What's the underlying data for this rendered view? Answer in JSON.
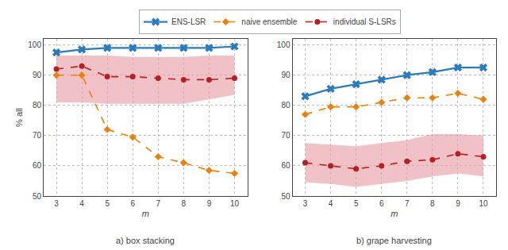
{
  "chart_data": [
    {
      "type": "line",
      "title": "a) box stacking",
      "xlabel": "m",
      "ylabel": "% all",
      "x": [
        3,
        4,
        5,
        6,
        7,
        8,
        9,
        10
      ],
      "series": [
        {
          "name": "ENS-LSR",
          "color": "#2b7bba",
          "marker": "x",
          "line_style": "solid",
          "values": [
            97.5,
            98.5,
            99.0,
            99.0,
            99.0,
            99.0,
            99.0,
            99.5
          ]
        },
        {
          "name": "naive ensemble",
          "color": "#e8820c",
          "marker": "diamond",
          "line_style": "dashed",
          "values": [
            90.0,
            90.0,
            72.0,
            69.5,
            63.0,
            61.0,
            58.5,
            57.5
          ]
        },
        {
          "name": "individual S-LSRs",
          "color": "#b52020",
          "marker": "circle",
          "line_style": "dashed",
          "values": [
            92.0,
            93.0,
            89.5,
            89.5,
            89.0,
            88.5,
            88.5,
            89.0
          ],
          "band": {
            "color": "#e8a0a8",
            "upper": [
              96.5,
              96.5,
              96.5,
              96.0,
              96.0,
              96.0,
              96.5,
              96.5
            ],
            "lower": [
              81.0,
              81.0,
              80.5,
              80.5,
              80.5,
              80.5,
              82.0,
              83.5
            ]
          }
        }
      ],
      "xlim": [
        2.5,
        10.5
      ],
      "xticks": [
        3,
        4,
        5,
        6,
        7,
        8,
        9,
        10
      ],
      "ylim": [
        50,
        102
      ],
      "yticks": [
        50,
        60,
        70,
        80,
        90,
        100
      ],
      "grid": true,
      "legend": "top"
    },
    {
      "type": "line",
      "title": "b) grape harvesting",
      "xlabel": "m",
      "x": [
        3,
        4,
        5,
        6,
        7,
        8,
        9,
        10
      ],
      "series": [
        {
          "name": "ENS-LSR",
          "color": "#2b7bba",
          "marker": "x",
          "line_style": "solid",
          "values": [
            83.0,
            85.5,
            87.0,
            88.5,
            90.0,
            91.0,
            92.5,
            92.5
          ]
        },
        {
          "name": "naive ensemble",
          "color": "#e8820c",
          "marker": "diamond",
          "line_style": "dashed",
          "values": [
            77.0,
            79.5,
            79.5,
            81.0,
            82.5,
            82.5,
            84.0,
            82.0
          ]
        },
        {
          "name": "individual S-LSRs",
          "color": "#b52020",
          "marker": "circle",
          "line_style": "dashed",
          "values": [
            61.0,
            60.0,
            59.0,
            60.0,
            61.5,
            62.0,
            64.0,
            63.0
          ],
          "band": {
            "color": "#e8a0a8",
            "upper": [
              67.5,
              67.0,
              66.5,
              67.5,
              68.5,
              70.5,
              70.5,
              70.0
            ],
            "lower": [
              54.5,
              54.0,
              53.0,
              54.0,
              55.0,
              56.5,
              57.5,
              56.5
            ]
          }
        }
      ],
      "xlim": [
        2.5,
        10.5
      ],
      "xticks": [
        3,
        4,
        5,
        6,
        7,
        8,
        9,
        10
      ],
      "ylim": [
        50,
        102
      ],
      "yticks": [
        50,
        60,
        70,
        80,
        90,
        100
      ],
      "grid": true,
      "legend": "top"
    }
  ]
}
